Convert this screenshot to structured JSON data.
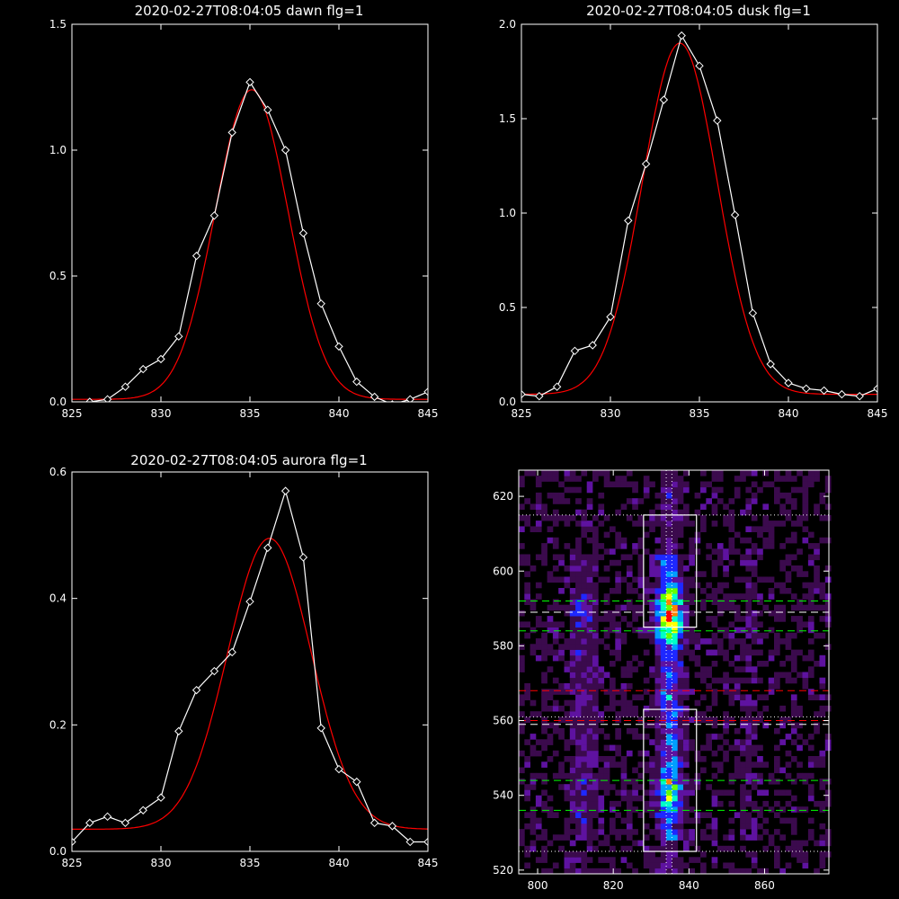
{
  "chart_data": [
    {
      "type": "line",
      "title": "2020-02-27T08:04:05 dawn flg=1",
      "xlabel": "",
      "ylabel": "",
      "xlim": [
        825,
        845
      ],
      "ylim": [
        0,
        1.5
      ],
      "xticks": [
        825,
        830,
        835,
        840,
        845
      ],
      "yticks": [
        0.0,
        0.5,
        1.0,
        1.5
      ],
      "xtick_labels": [
        "825",
        "830",
        "835",
        "840",
        "845"
      ],
      "ytick_labels": [
        "0.0",
        "0.5",
        "1.0",
        "1.5"
      ],
      "colors": {
        "data": "#ffffff",
        "fit": "#ff0000",
        "axes": "#ffffff"
      },
      "series": [
        {
          "kind": "data",
          "marker": "diamond",
          "x": [
            826,
            827,
            828,
            829,
            830,
            831,
            832,
            833,
            834,
            835,
            836,
            837,
            838,
            839,
            840,
            841,
            842,
            843,
            844,
            845
          ],
          "y": [
            0.0,
            0.01,
            0.06,
            0.13,
            0.17,
            0.26,
            0.58,
            0.74,
            1.07,
            1.27,
            1.16,
            1.0,
            0.67,
            0.39,
            0.22,
            0.08,
            0.02,
            -0.01,
            0.01,
            0.04
          ]
        },
        {
          "kind": "fit",
          "amplitude": 1.23,
          "center": 835.1,
          "sigma": 2.05,
          "baseline": 0.01
        }
      ]
    },
    {
      "type": "line",
      "title": "2020-02-27T08:04:05 dusk flg=1",
      "xlabel": "",
      "ylabel": "",
      "xlim": [
        825,
        845
      ],
      "ylim": [
        0,
        2.0
      ],
      "xticks": [
        825,
        830,
        835,
        840,
        845
      ],
      "yticks": [
        0.0,
        0.5,
        1.0,
        1.5,
        2.0
      ],
      "xtick_labels": [
        "825",
        "830",
        "835",
        "840",
        "845"
      ],
      "ytick_labels": [
        "0.0",
        "0.5",
        "1.0",
        "1.5",
        "2.0"
      ],
      "colors": {
        "data": "#ffffff",
        "fit": "#ff0000",
        "axes": "#ffffff"
      },
      "series": [
        {
          "kind": "data",
          "marker": "diamond",
          "x": [
            825,
            826,
            827,
            828,
            829,
            830,
            831,
            832,
            833,
            834,
            835,
            836,
            837,
            838,
            839,
            840,
            841,
            842,
            843,
            844,
            845
          ],
          "y": [
            0.04,
            0.03,
            0.08,
            0.27,
            0.3,
            0.45,
            0.96,
            1.26,
            1.6,
            1.94,
            1.78,
            1.49,
            0.99,
            0.47,
            0.2,
            0.1,
            0.07,
            0.06,
            0.04,
            0.03,
            0.07
          ]
        },
        {
          "kind": "fit",
          "amplitude": 1.86,
          "center": 833.9,
          "sigma": 2.1,
          "baseline": 0.04
        }
      ]
    },
    {
      "type": "line",
      "title": "2020-02-27T08:04:05 aurora flg=1",
      "xlabel": "",
      "ylabel": "",
      "xlim": [
        825,
        845
      ],
      "ylim": [
        0,
        0.6
      ],
      "xticks": [
        825,
        830,
        835,
        840,
        845
      ],
      "yticks": [
        0.0,
        0.2,
        0.4,
        0.6
      ],
      "xtick_labels": [
        "825",
        "830",
        "835",
        "840",
        "845"
      ],
      "ytick_labels": [
        "0.0",
        "0.2",
        "0.4",
        "0.6"
      ],
      "colors": {
        "data": "#ffffff",
        "fit": "#ff0000",
        "axes": "#ffffff"
      },
      "series": [
        {
          "kind": "data",
          "marker": "diamond",
          "x": [
            825,
            826,
            827,
            828,
            829,
            830,
            831,
            832,
            833,
            834,
            835,
            836,
            837,
            838,
            839,
            840,
            841,
            842,
            843,
            844,
            845
          ],
          "y": [
            0.015,
            0.045,
            0.055,
            0.045,
            0.065,
            0.085,
            0.19,
            0.255,
            0.285,
            0.315,
            0.395,
            0.48,
            0.57,
            0.465,
            0.195,
            0.13,
            0.11,
            0.045,
            0.04,
            0.015,
            0.015
          ]
        },
        {
          "kind": "fit",
          "amplitude": 0.46,
          "center": 836.1,
          "sigma": 2.35,
          "baseline": 0.035
        }
      ]
    },
    {
      "type": "heatmap",
      "title": "",
      "xlabel": "",
      "ylabel": "",
      "xlim": [
        795,
        877
      ],
      "ylim": [
        519,
        627
      ],
      "xticks": [
        800,
        820,
        840,
        860
      ],
      "yticks": [
        520,
        540,
        560,
        580,
        600,
        620
      ],
      "xtick_labels": [
        "800",
        "820",
        "840",
        "860"
      ],
      "ytick_labels": [
        "520",
        "540",
        "560",
        "580",
        "600",
        "620"
      ],
      "colormap": [
        "#000000",
        "#3b0a4d",
        "#5e12a0",
        "#1e28ff",
        "#00a0ff",
        "#00ffc8",
        "#64ff00",
        "#ffff00",
        "#ff8000",
        "#ff0000"
      ],
      "emission_columns": [
        {
          "x_center": 812,
          "x_width": 5,
          "strength": 0.35
        },
        {
          "x_center": 835,
          "x_width": 4,
          "strength": 1.0
        },
        {
          "x_center": 856,
          "x_width": 4,
          "strength": 0.18
        }
      ],
      "bright_spots": [
        {
          "x": 835,
          "y": 588,
          "strength": 1.0
        },
        {
          "x": 835,
          "y": 541,
          "strength": 0.7
        },
        {
          "x": 812,
          "y": 588,
          "strength": 0.6
        },
        {
          "x": 812,
          "y": 542,
          "strength": 0.5
        },
        {
          "x": 856,
          "y": 589,
          "strength": 0.35
        }
      ],
      "boxes": [
        {
          "x0": 828,
          "x1": 842,
          "y0": 585,
          "y1": 615,
          "color": "#ffffff"
        },
        {
          "x0": 828,
          "x1": 842,
          "y0": 525,
          "y1": 563,
          "color": "#ffffff"
        }
      ],
      "vlines": [
        {
          "x": 834,
          "style": "dotted",
          "color": "#ffffff"
        },
        {
          "x": 835.5,
          "style": "dotted",
          "color": "#ffffff"
        }
      ],
      "hlines": [
        {
          "y": 615,
          "style": "dotted",
          "color": "#ffffff"
        },
        {
          "y": 592,
          "style": "dashed",
          "color": "#00ff00"
        },
        {
          "y": 589,
          "style": "dashed",
          "color": "#ffffff"
        },
        {
          "y": 584,
          "style": "dashed",
          "color": "#00ff00"
        },
        {
          "y": 568,
          "style": "dashed",
          "color": "#ff0000"
        },
        {
          "y": 561,
          "style": "dotted",
          "color": "#ffffff"
        },
        {
          "y": 560,
          "style": "dashed",
          "color": "#ff0000"
        },
        {
          "y": 559,
          "style": "dashed",
          "color": "#ffffff"
        },
        {
          "y": 544,
          "style": "dashed",
          "color": "#00ff00"
        },
        {
          "y": 536,
          "style": "dashed",
          "color": "#00ff00"
        },
        {
          "y": 525,
          "style": "dotted",
          "color": "#ffffff"
        }
      ]
    }
  ]
}
